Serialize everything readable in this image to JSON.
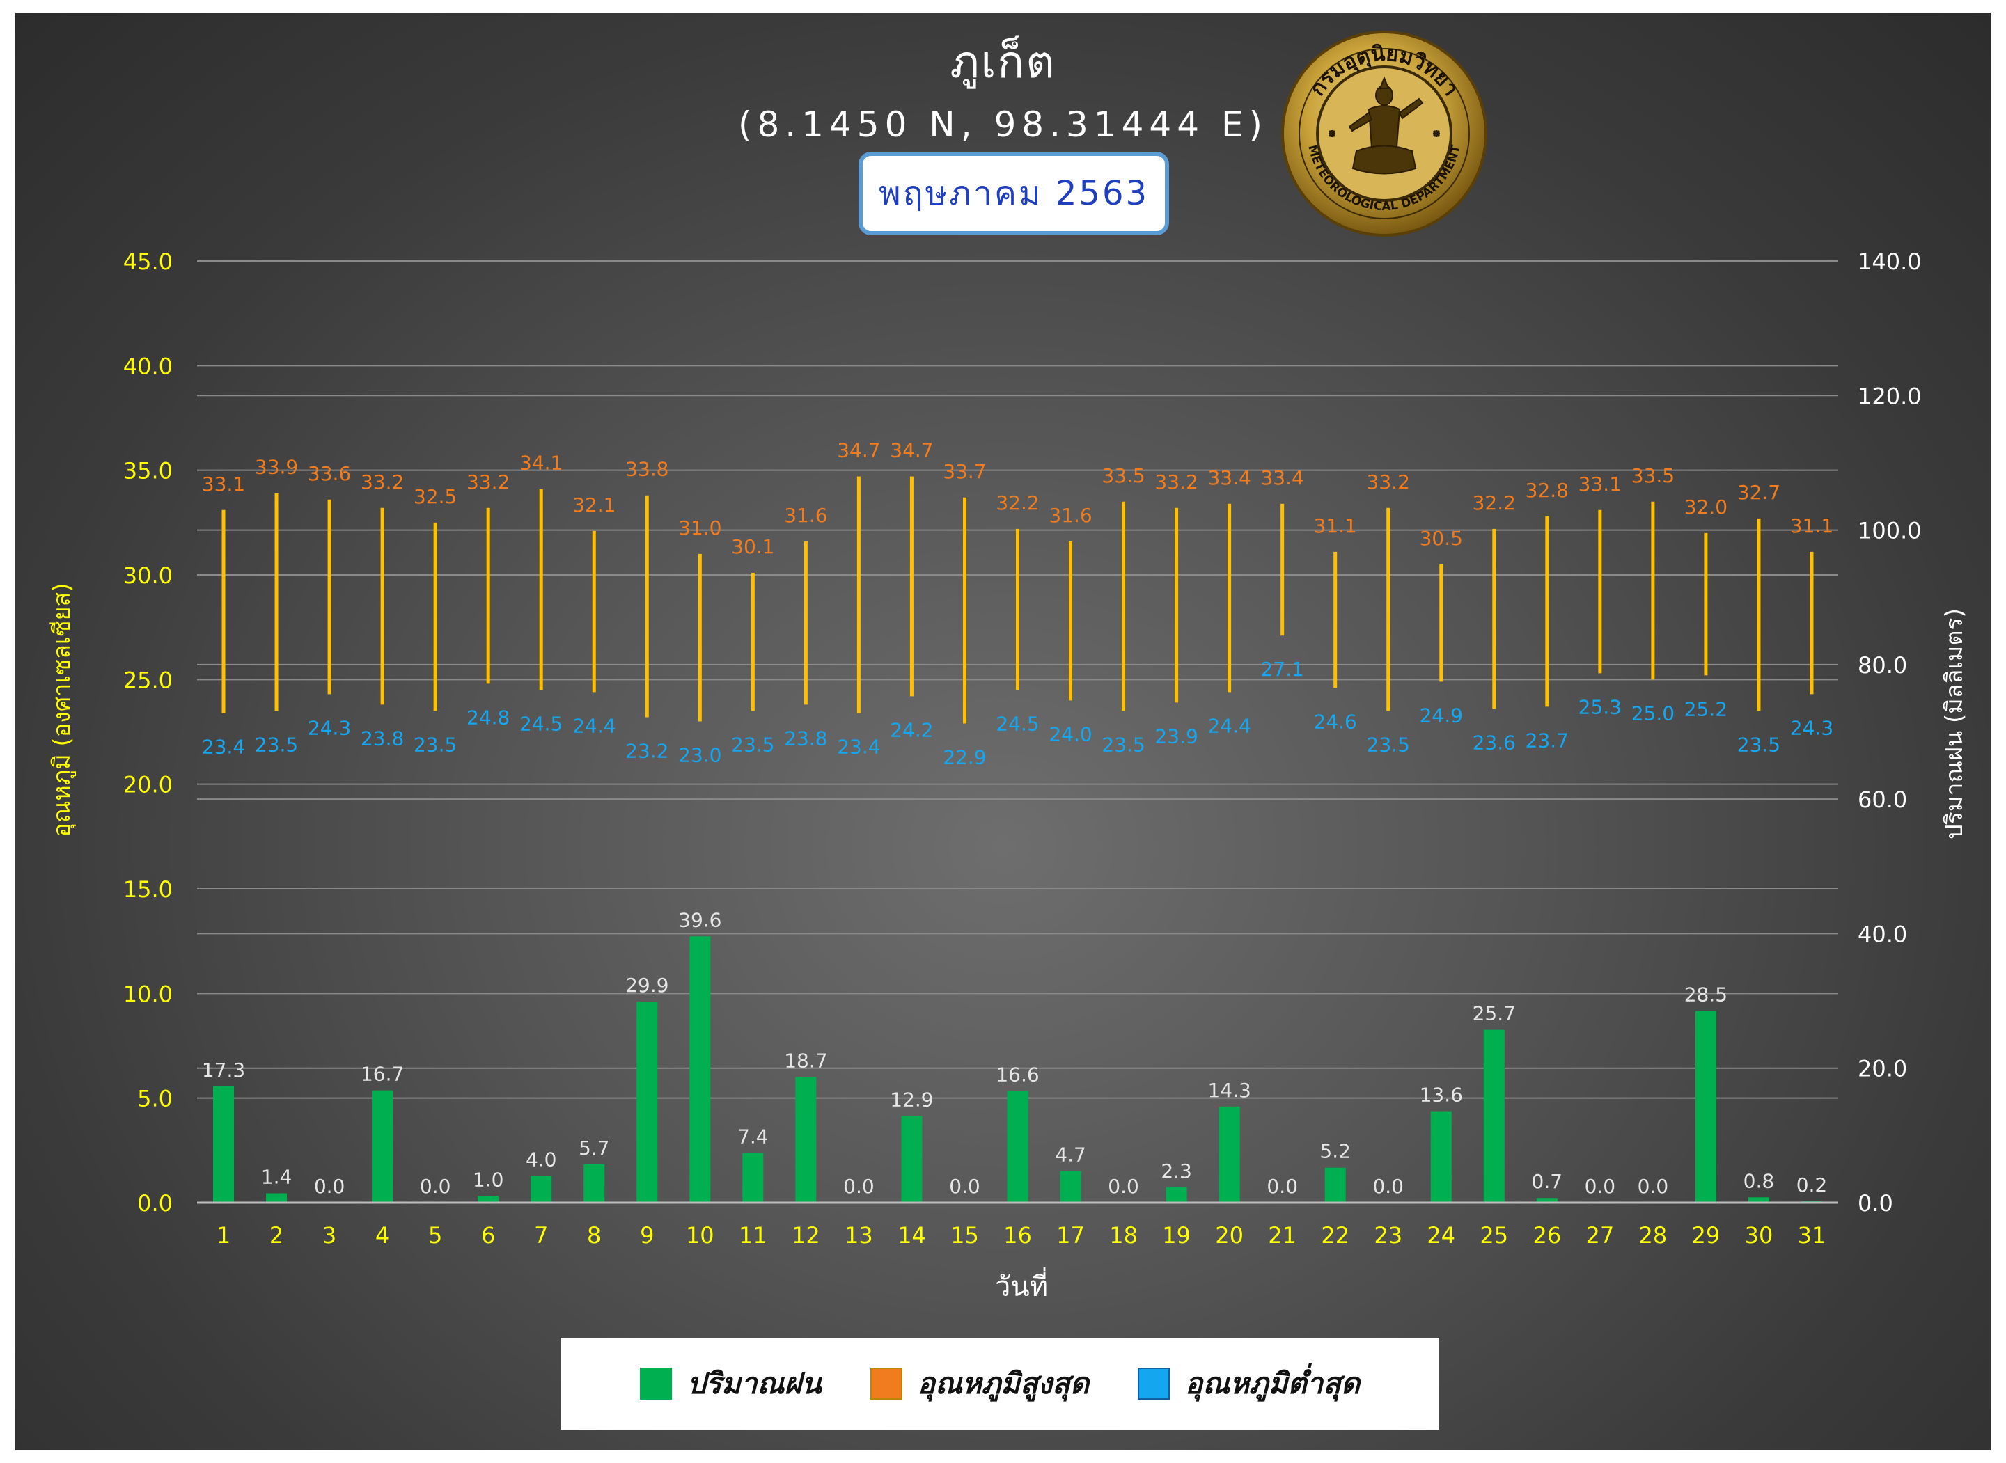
{
  "header": {
    "title": "ภูเก็ต",
    "coords": "(8.1450 N, 98.31444 E)",
    "month": "พฤษภาคม 2563"
  },
  "logo": {
    "top_text": "กรมอุตุนิยมวิทยา",
    "bottom_text": "METEOROLOGICAL DEPARTMENT"
  },
  "colors": {
    "rain": "#00b050",
    "tmax": "#f07c1e",
    "tmin": "#15a6f0",
    "range_line": "#ffc000",
    "left_axis": "#ffff00",
    "right_axis": "#ffffff",
    "day_labels": "#ffff00"
  },
  "legend": {
    "items": [
      {
        "label": "ปริมาณฝน",
        "color": "#00b050"
      },
      {
        "label": "อุณหภูมิสูงสุด",
        "color": "#f07c1e"
      },
      {
        "label": "อุณหภูมิต่ำสุด",
        "color": "#15a6f0"
      }
    ]
  },
  "chart_data": {
    "type": "bar",
    "xlabel": "วันที่",
    "ylabel_left": "อุณหภูมิ (องศาเซลเซียส)",
    "ylabel_right": "ปริมาณฝน (มิลลิเมตร)",
    "ylim_left": [
      0,
      45
    ],
    "ylim_right": [
      0,
      140
    ],
    "yticks_left": [
      "0.0",
      "5.0",
      "10.0",
      "15.0",
      "20.0",
      "25.0",
      "30.0",
      "35.0",
      "40.0",
      "45.0"
    ],
    "yticks_right": [
      "0.0",
      "20.0",
      "40.0",
      "60.0",
      "80.0",
      "100.0",
      "120.0",
      "140.0"
    ],
    "categories": [
      "1",
      "2",
      "3",
      "4",
      "5",
      "6",
      "7",
      "8",
      "9",
      "10",
      "11",
      "12",
      "13",
      "14",
      "15",
      "16",
      "17",
      "18",
      "19",
      "20",
      "21",
      "22",
      "23",
      "24",
      "25",
      "26",
      "27",
      "28",
      "29",
      "30",
      "31"
    ],
    "series": [
      {
        "name": "ปริมาณฝน",
        "type": "bar",
        "axis": "right",
        "values": [
          17.3,
          1.4,
          0.0,
          16.7,
          0.0,
          1.0,
          4.0,
          5.7,
          29.9,
          39.6,
          7.4,
          18.7,
          0.0,
          12.9,
          0.0,
          16.6,
          4.7,
          0.0,
          2.3,
          14.3,
          0.0,
          5.2,
          0.0,
          13.6,
          25.7,
          0.7,
          0.0,
          0.0,
          28.5,
          0.8,
          0.2
        ]
      },
      {
        "name": "อุณหภูมิสูงสุด",
        "type": "range_high",
        "axis": "left",
        "values": [
          33.1,
          33.9,
          33.6,
          33.2,
          32.5,
          33.2,
          34.1,
          32.1,
          33.8,
          31.0,
          30.1,
          31.6,
          34.7,
          34.7,
          33.7,
          32.2,
          31.6,
          33.5,
          33.2,
          33.4,
          33.4,
          31.1,
          33.2,
          30.5,
          32.2,
          32.8,
          33.1,
          33.5,
          32.0,
          32.7,
          31.1
        ]
      },
      {
        "name": "อุณหภูมิต่ำสุด",
        "type": "range_low",
        "axis": "left",
        "values": [
          23.4,
          23.5,
          24.3,
          23.8,
          23.5,
          24.8,
          24.5,
          24.4,
          23.2,
          23.0,
          23.5,
          23.8,
          23.4,
          24.2,
          22.9,
          24.5,
          24.0,
          23.5,
          23.9,
          24.4,
          27.1,
          24.6,
          23.5,
          24.9,
          23.6,
          23.7,
          25.3,
          25.0,
          25.2,
          23.5,
          24.3
        ]
      }
    ],
    "grid": true,
    "legend_position": "bottom"
  }
}
